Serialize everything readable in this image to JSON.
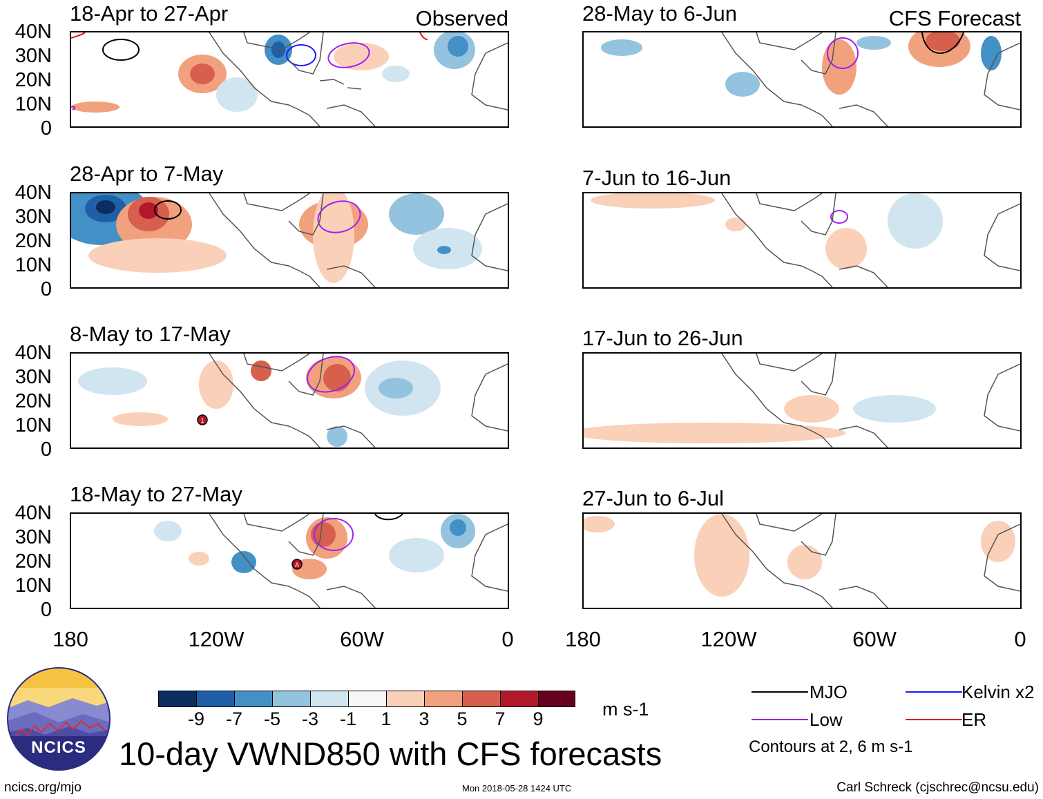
{
  "panels_left": [
    {
      "title": "18-Apr to 27-Apr",
      "corner": "Observed"
    },
    {
      "title": "28-Apr to 7-May",
      "corner": ""
    },
    {
      "title": "8-May to 17-May",
      "corner": ""
    },
    {
      "title": "18-May to 27-May",
      "corner": ""
    }
  ],
  "panels_right": [
    {
      "title": "28-May to 6-Jun",
      "corner": "CFS Forecast"
    },
    {
      "title": "7-Jun to 16-Jun",
      "corner": ""
    },
    {
      "title": "17-Jun to 26-Jun",
      "corner": ""
    },
    {
      "title": "27-Jun to 6-Jul",
      "corner": ""
    }
  ],
  "y_axis_labels": [
    "40N",
    "30N",
    "20N",
    "10N",
    "0"
  ],
  "x_axis_labels": [
    "180",
    "120W",
    "60W",
    "0"
  ],
  "storm_markers": [
    "1",
    "A"
  ],
  "colorbar": {
    "ticks": [
      "-9",
      "-7",
      "-5",
      "-3",
      "-1",
      "1",
      "3",
      "5",
      "7",
      "9"
    ],
    "colors": [
      "#0b2e5e",
      "#1f5fa8",
      "#4390c6",
      "#93c3df",
      "#d1e5f0",
      "#f7f7f7",
      "#fbd0b9",
      "#f1a17e",
      "#d6604d",
      "#b2182b",
      "#67001f"
    ],
    "units": "m s-1"
  },
  "legend": {
    "items": [
      {
        "label": "MJO",
        "color": "#000000"
      },
      {
        "label": "Kelvin x2",
        "color": "#1a1aff"
      },
      {
        "label": "Low",
        "color": "#a020f0"
      },
      {
        "label": "ER",
        "color": "#e8101a"
      }
    ],
    "note": "Contours at 2, 6 m s-1"
  },
  "logo_text": "NCICS",
  "main_title": "10-day VWND850 with CFS forecasts",
  "footer": {
    "url": "ncics.org/mjo",
    "timestamp": "Mon 2018-05-28 1424 UTC",
    "author": "Carl Schreck (cjschrec@ncsu.edu)"
  }
}
